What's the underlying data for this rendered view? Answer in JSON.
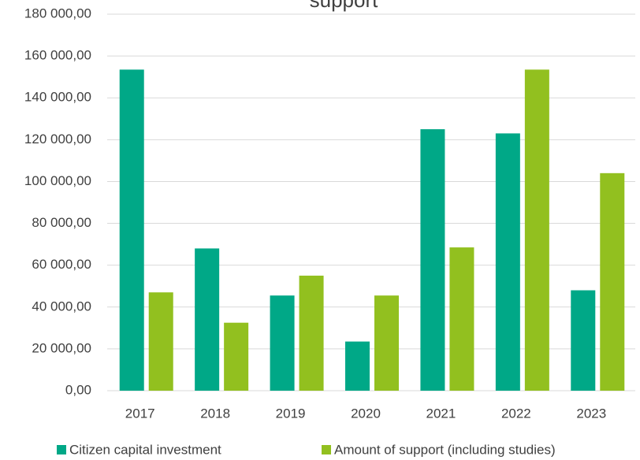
{
  "chart_data": {
    "type": "bar",
    "title": "support",
    "categories": [
      "2017",
      "2018",
      "2019",
      "2020",
      "2021",
      "2022",
      "2023"
    ],
    "series": [
      {
        "name": "Citizen capital investment",
        "color": "#00a887",
        "values": [
          153500,
          68000,
          45500,
          23500,
          125000,
          123000,
          48000
        ]
      },
      {
        "name": "Amount of support (including studies)",
        "color": "#92c01f",
        "values": [
          47000,
          32500,
          55000,
          45500,
          68500,
          153500,
          104000
        ]
      }
    ],
    "ylim": [
      0,
      180000
    ],
    "yticks": [
      {
        "value": 0,
        "label": "0,00"
      },
      {
        "value": 20000,
        "label": "20 000,00"
      },
      {
        "value": 40000,
        "label": "40 000,00"
      },
      {
        "value": 60000,
        "label": "60 000,00"
      },
      {
        "value": 80000,
        "label": "80 000,00"
      },
      {
        "value": 100000,
        "label": "100 000,00"
      },
      {
        "value": 120000,
        "label": "120 000,00"
      },
      {
        "value": 140000,
        "label": "140 000,00"
      },
      {
        "value": 160000,
        "label": "160 000,00"
      },
      {
        "value": 180000,
        "label": "180 000,00"
      }
    ],
    "grid": true
  }
}
